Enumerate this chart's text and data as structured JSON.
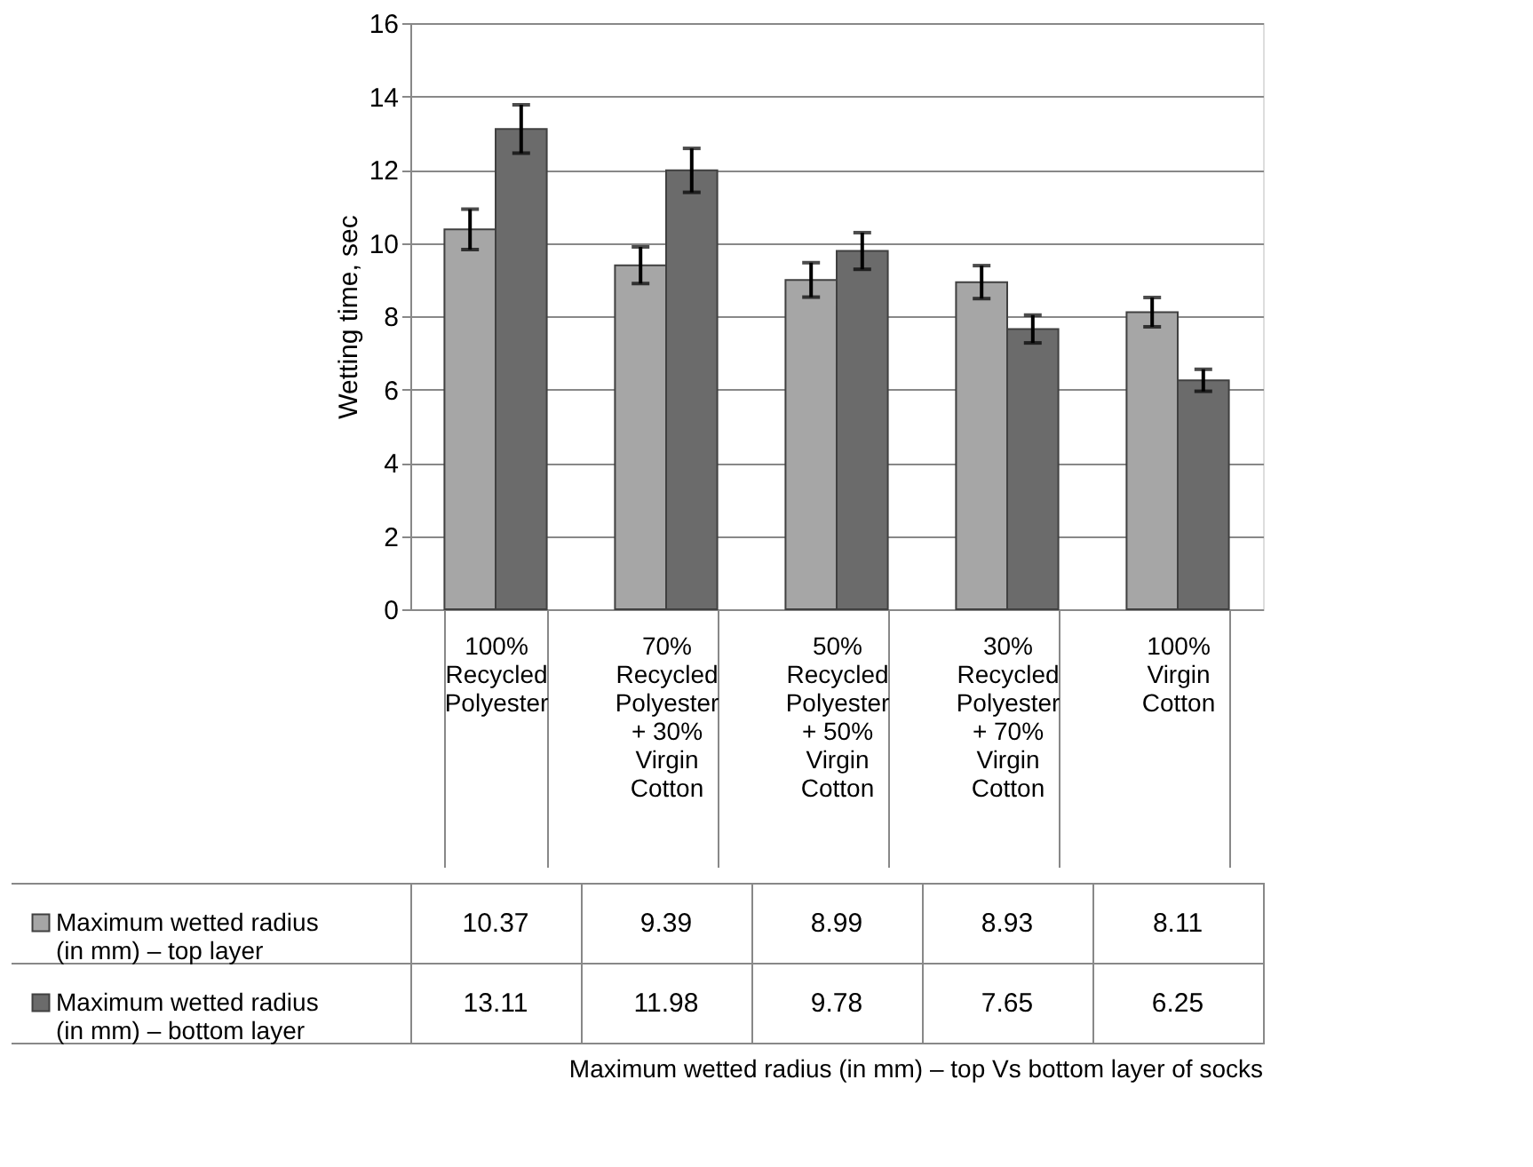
{
  "chart_data": {
    "type": "bar",
    "ylabel": "Wetting time, sec",
    "annotations": [
      "Maximum wetted radius (in mm) – top Vs bottom layer of socks"
    ],
    "categories": [
      "100% Recycled Polyester",
      "70% Recycled Polyester + 30% Virgin Cotton",
      "50% Recycled Polyester + 50% Virgin Cotton",
      "30% Recycled Polyester + 70% Virgin Cotton",
      "100% Virgin Cotton"
    ],
    "series": [
      {
        "name": "Maximum wetted radius (in mm) – top layer",
        "color": "#a6a6a6",
        "values": [
          10.37,
          9.39,
          8.99,
          8.93,
          8.11
        ],
        "errors": [
          0.55,
          0.5,
          0.47,
          0.45,
          0.4
        ]
      },
      {
        "name": "Maximum wetted radius (in mm) – bottom layer",
        "color": "#6b6b6b",
        "values": [
          13.11,
          11.98,
          9.78,
          7.65,
          6.25
        ],
        "errors": [
          0.66,
          0.6,
          0.5,
          0.38,
          0.3
        ]
      }
    ],
    "ylim": [
      0,
      16
    ],
    "yticks": [
      0,
      2,
      4,
      6,
      8,
      10,
      12,
      14,
      16
    ],
    "grid": "y",
    "legend": "bottom left",
    "data_labels": true
  }
}
